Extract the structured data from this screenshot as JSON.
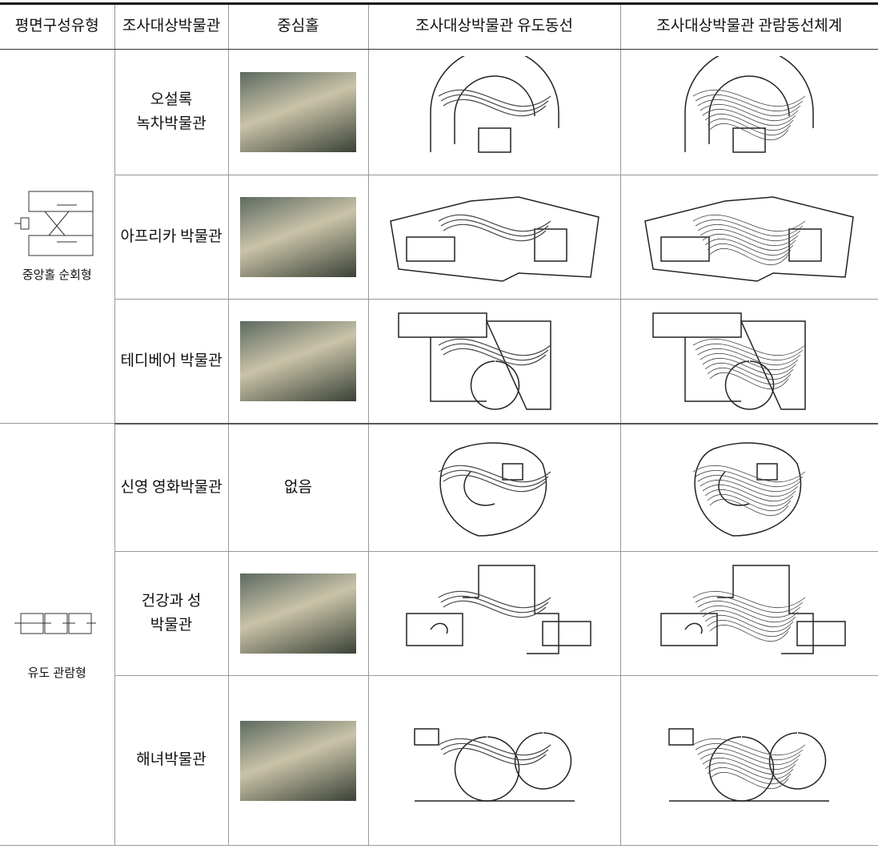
{
  "table": {
    "header": [
      "평면구성유형",
      "조사대상박물관",
      "중심홀",
      "조사대상박물관 유도동선",
      "조사대상박물관 관람동선체계"
    ],
    "groups": [
      {
        "type": "중앙홀 순회형",
        "rows": [
          {
            "museum": [
              "오설록",
              "녹차박물관"
            ]
          },
          {
            "museum": [
              "아프리카 박물관"
            ]
          },
          {
            "museum": [
              "테디베어 박물관"
            ]
          }
        ]
      },
      {
        "type": "유도 관람형",
        "rows": [
          {
            "museum": [
              "신영 영화박물관"
            ],
            "hall": "없음"
          },
          {
            "museum": [
              "건강과 성",
              "박물관"
            ]
          },
          {
            "museum": [
              "해녀박물관"
            ]
          }
        ]
      }
    ]
  }
}
